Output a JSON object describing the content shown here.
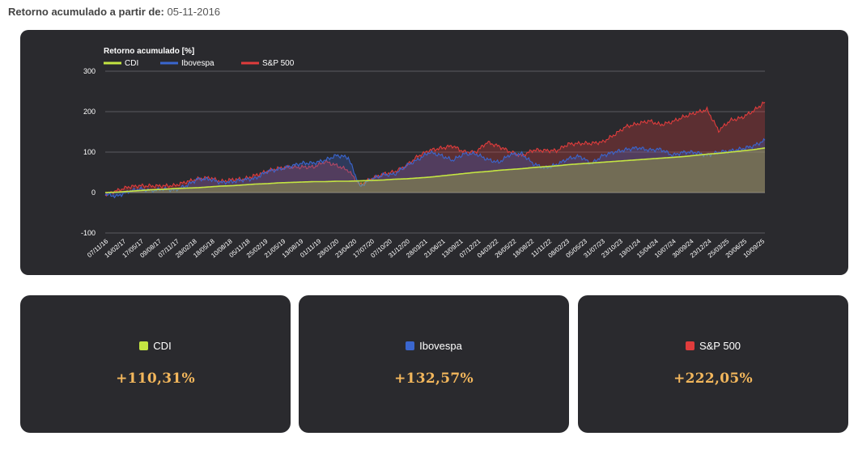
{
  "header": {
    "label": "Retorno acumulado a partir de:",
    "date": "05-11-2016"
  },
  "chart_data": {
    "type": "area",
    "title": "Retorno acumulado [%]",
    "ylabel": "Retorno acumulado [%]",
    "xlabel": "",
    "ylim": [
      -100,
      300
    ],
    "yticks": [
      300,
      200,
      100,
      0,
      -100
    ],
    "legend_position": "top-left",
    "grid": true,
    "x_tick_labels": [
      "07/11/16",
      "16/02/17",
      "17/05/17",
      "09/08/17",
      "07/11/17",
      "28/02/18",
      "18/05/18",
      "10/08/18",
      "05/11/18",
      "25/02/19",
      "21/05/19",
      "13/08/19",
      "01/11/19",
      "28/01/20",
      "23/04/20",
      "17/07/20",
      "07/10/20",
      "31/12/20",
      "28/03/21",
      "21/06/21",
      "13/09/21",
      "07/12/21",
      "04/03/22",
      "26/05/22",
      "18/08/22",
      "11/11/22",
      "08/02/23",
      "05/05/23",
      "31/07/23",
      "23/10/23",
      "19/01/24",
      "15/04/24",
      "10/07/24",
      "30/09/24",
      "23/12/24",
      "25/03/25",
      "20/06/25",
      "10/09/25"
    ],
    "series": [
      {
        "name": "CDI",
        "color": "#c4e542",
        "values": [
          0,
          1,
          3,
          5,
          7,
          8,
          10,
          11,
          12,
          14,
          16,
          17,
          19,
          21,
          22,
          24,
          25,
          26,
          27,
          27,
          28,
          28,
          29,
          30,
          31,
          33,
          34,
          36,
          38,
          41,
          44,
          47,
          50,
          52,
          55,
          57,
          59,
          62,
          64,
          66,
          69,
          71,
          73,
          75,
          77,
          79,
          81,
          83,
          85,
          87,
          89,
          92,
          95,
          97,
          100,
          103,
          106,
          110.31
        ]
      },
      {
        "name": "Ibovespa",
        "color": "#3a66cf",
        "values": [
          0,
          -5,
          3,
          5,
          0,
          8,
          10,
          22,
          35,
          30,
          20,
          25,
          35,
          40,
          55,
          55,
          60,
          70,
          75,
          85,
          95,
          85,
          10,
          30,
          45,
          50,
          70,
          80,
          95,
          88,
          80,
          100,
          100,
          82,
          70,
          90,
          95,
          75,
          65,
          70,
          80,
          85,
          70,
          95,
          105,
          108,
          108,
          100,
          105,
          95,
          105,
          102,
          90,
          95,
          100,
          110,
          120,
          132.57
        ]
      },
      {
        "name": "S&P 500",
        "color": "#e03c3c",
        "values": [
          0,
          5,
          10,
          12,
          15,
          20,
          22,
          28,
          30,
          32,
          25,
          35,
          38,
          45,
          50,
          55,
          60,
          65,
          68,
          80,
          65,
          50,
          15,
          35,
          50,
          55,
          65,
          85,
          100,
          110,
          120,
          105,
          100,
          120,
          110,
          100,
          95,
          110,
          105,
          100,
          115,
          120,
          125,
          130,
          145,
          160,
          165,
          175,
          170,
          180,
          190,
          195,
          200,
          150,
          180,
          190,
          205,
          222.05
        ]
      }
    ]
  },
  "cards": [
    {
      "name": "CDI",
      "color": "#c4e542",
      "value": "+110,31%"
    },
    {
      "name": "Ibovespa",
      "color": "#3a66cf",
      "value": "+132,57%"
    },
    {
      "name": "S&P 500",
      "color": "#e03c3c",
      "value": "+222,05%"
    }
  ]
}
